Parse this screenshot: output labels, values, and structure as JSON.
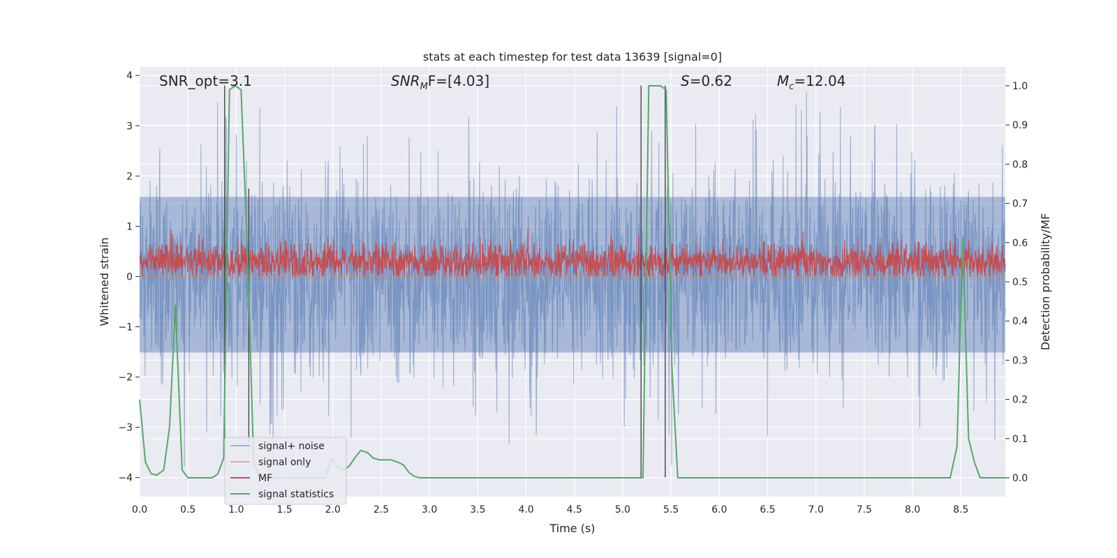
{
  "chart_data": {
    "type": "line",
    "title": "stats at each timestep for test data 13639 [signal=0]",
    "xlabel": "Time (s)",
    "ylabel_left": "Whitened strain",
    "ylabel_right": "Detection probability/MF",
    "xlim": [
      0,
      8.96
    ],
    "ylim_left": [
      -4.38,
      4.17
    ],
    "ylim_right": [
      -0.048,
      1.048
    ],
    "x_ticks": [
      0.0,
      0.5,
      1.0,
      1.5,
      2.0,
      2.5,
      3.0,
      3.5,
      4.0,
      4.5,
      5.0,
      5.5,
      6.0,
      6.5,
      7.0,
      7.5,
      8.0,
      8.5
    ],
    "x_tick_labels": [
      "0.0",
      "0.5",
      "1.0",
      "1.5",
      "2.0",
      "2.5",
      "3.0",
      "3.5",
      "4.0",
      "4.5",
      "5.0",
      "5.5",
      "6.0",
      "6.5",
      "7.0",
      "7.5",
      "8.0",
      "8.5"
    ],
    "y_left_ticks": [
      -4,
      -3,
      -2,
      -1,
      0,
      1,
      2,
      3,
      4
    ],
    "y_left_tick_labels": [
      "−4",
      "−3",
      "−2",
      "−1",
      "0",
      "1",
      "2",
      "3",
      "4"
    ],
    "y_right_ticks": [
      0.0,
      0.1,
      0.2,
      0.3,
      0.4,
      0.5,
      0.6,
      0.7,
      0.8,
      0.9,
      1.0
    ],
    "y_right_tick_labels": [
      "0.0",
      "0.1",
      "0.2",
      "0.3",
      "0.4",
      "0.5",
      "0.6",
      "0.7",
      "0.8",
      "0.9",
      "1.0"
    ],
    "grid": true,
    "legend_position": "lower-left",
    "annotations": {
      "snr_opt": "SNR_opt=3.1",
      "snr_mf_main": "SNR",
      "snr_mf_sub": "M",
      "snr_mf_rest": "F=[4.03]",
      "s_main": "S",
      "s_rest": "=0.62",
      "mc_main": "M",
      "mc_sub": "c",
      "mc_rest": "=12.04"
    },
    "vertical_markers": [
      {
        "x": 0.88,
        "y_top": 3.8,
        "y_bottom": -3.3
      },
      {
        "x": 1.13,
        "y_top": 1.75,
        "y_bottom": -3.3
      },
      {
        "x": 5.19,
        "y_top": 3.8,
        "y_bottom": -4.0
      },
      {
        "x": 5.44,
        "y_top": 3.8,
        "y_bottom": -4.0
      }
    ],
    "series": [
      {
        "name": "signal+ noise",
        "axis": "left",
        "color": "#4c72b0",
        "opacity": 0.5,
        "kind": "noise",
        "amplitude_sigma": 0.95,
        "samples": 2400,
        "envelope": {
          "low": -2.1,
          "high": 2.2
        }
      },
      {
        "name": "signal only",
        "axis": "left",
        "color": "#dd8452",
        "opacity": 0.6,
        "x": [
          0,
          8.96
        ],
        "y": [
          0,
          0
        ]
      },
      {
        "name": "MF",
        "axis": "left",
        "color": "#c44e52",
        "opacity": 1.0,
        "kind": "noise",
        "center": 0.3,
        "amplitude_sigma": 0.18,
        "samples": 2400,
        "envelope": {
          "low": 0.0,
          "high": 0.95
        }
      },
      {
        "name": "signal statistics",
        "axis": "right",
        "color": "#55a868",
        "opacity": 1.0,
        "x": [
          0.0,
          0.06,
          0.12,
          0.18,
          0.25,
          0.31,
          0.37,
          0.44,
          0.5,
          0.56,
          0.62,
          0.69,
          0.75,
          0.81,
          0.87,
          0.93,
          0.99,
          1.05,
          1.12,
          1.18,
          1.24,
          1.3,
          1.37,
          1.43,
          1.49,
          1.55,
          1.61,
          1.68,
          1.74,
          1.8,
          1.86,
          1.92,
          1.99,
          2.05,
          2.11,
          2.17,
          2.23,
          2.29,
          2.36,
          2.42,
          2.48,
          2.54,
          2.6,
          2.67,
          2.73,
          2.79,
          2.85,
          2.91,
          2.98,
          3.04,
          5.15,
          5.21,
          5.27,
          5.33,
          5.39,
          5.45,
          5.51,
          5.57,
          8.33,
          8.39,
          8.46,
          8.52,
          8.58,
          8.64,
          8.7,
          8.96
        ],
        "y": [
          0.2,
          0.04,
          0.01,
          0.007,
          0.02,
          0.13,
          0.44,
          0.02,
          0.0,
          0.0,
          0.0,
          0.0,
          0.0,
          0.01,
          0.05,
          0.99,
          1.0,
          0.99,
          0.55,
          0.04,
          0.0,
          0.0,
          0.0,
          0.0,
          0.0,
          0.0,
          0.0,
          0.0,
          0.0,
          0.0,
          0.0,
          0.0,
          0.05,
          0.026,
          0.02,
          0.03,
          0.052,
          0.07,
          0.064,
          0.05,
          0.046,
          0.046,
          0.046,
          0.04,
          0.033,
          0.013,
          0.003,
          0.0,
          0.0,
          0.0,
          0.0,
          0.0,
          1.0,
          1.0,
          1.0,
          0.99,
          0.28,
          0.0,
          0.0,
          0.0,
          0.08,
          0.61,
          0.1,
          0.04,
          0.0,
          0.0
        ]
      }
    ]
  }
}
